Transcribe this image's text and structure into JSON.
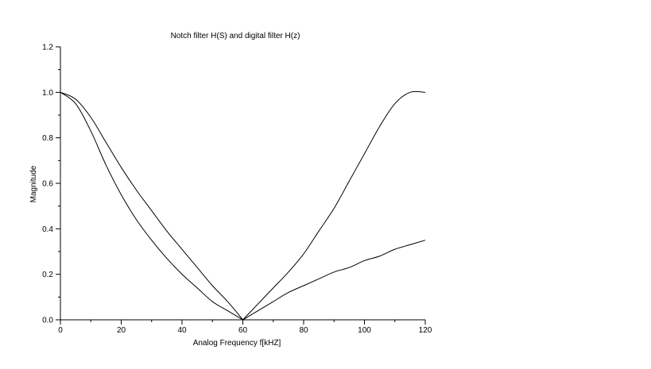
{
  "chart_data": {
    "type": "line",
    "title": "Notch filter H(S) and digital filter H(z)",
    "xlabel": "Analog Frequency f[kHZ]",
    "ylabel": "Magnitude",
    "xlim": [
      0,
      120
    ],
    "ylim": [
      0,
      1.2
    ],
    "xticks": [
      0,
      20,
      40,
      60,
      80,
      100,
      120
    ],
    "yticks": [
      0.0,
      0.2,
      0.4,
      0.6,
      0.8,
      1.0,
      1.2
    ],
    "xtick_labels": [
      "0",
      "20",
      "40",
      "60",
      "80",
      "100",
      "120"
    ],
    "ytick_labels": [
      "0.0",
      "0.2",
      "0.4",
      "0.6",
      "0.8",
      "1.0",
      "1.2"
    ],
    "grid": false,
    "line_color": "#000000",
    "series": [
      {
        "x": [
          0,
          5,
          10,
          15,
          20,
          25,
          30,
          35,
          40,
          45,
          50,
          55,
          60,
          65,
          70,
          75,
          80,
          85,
          90,
          95,
          100,
          105,
          110,
          115,
          120
        ],
        "y": [
          1.0,
          0.97,
          0.89,
          0.78,
          0.67,
          0.57,
          0.48,
          0.39,
          0.31,
          0.23,
          0.15,
          0.08,
          0.0,
          0.07,
          0.14,
          0.21,
          0.29,
          0.39,
          0.49,
          0.61,
          0.73,
          0.85,
          0.95,
          1.0,
          1.0
        ]
      },
      {
        "x": [
          0,
          5,
          10,
          15,
          20,
          25,
          30,
          35,
          40,
          45,
          50,
          55,
          60,
          65,
          70,
          75,
          80,
          85,
          90,
          95,
          100,
          105,
          110,
          115,
          120
        ],
        "y": [
          1.0,
          0.95,
          0.83,
          0.68,
          0.55,
          0.44,
          0.35,
          0.27,
          0.2,
          0.14,
          0.08,
          0.04,
          0.0,
          0.04,
          0.08,
          0.12,
          0.15,
          0.18,
          0.21,
          0.23,
          0.26,
          0.28,
          0.31,
          0.33,
          0.35
        ]
      }
    ]
  }
}
